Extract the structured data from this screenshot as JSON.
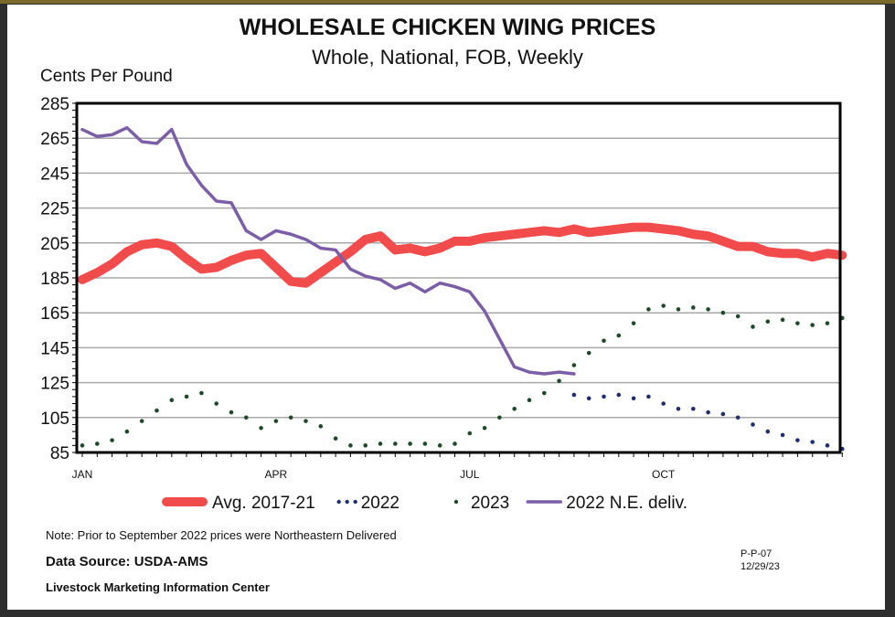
{
  "chart_data": {
    "type": "line",
    "title": "WHOLESALE CHICKEN WING PRICES",
    "subtitle": "Whole, National, FOB, Weekly",
    "ylabel": "Cents Per Pound",
    "ylim": [
      85,
      285
    ],
    "yticks": [
      85,
      105,
      125,
      145,
      165,
      185,
      205,
      225,
      245,
      265,
      285
    ],
    "xtick_labels": [
      {
        "label": "JAN",
        "week": 1
      },
      {
        "label": "APR",
        "week": 14
      },
      {
        "label": "JUL",
        "week": 27
      },
      {
        "label": "OCT",
        "week": 40
      }
    ],
    "x_unit": "week of year",
    "grid": true,
    "legend_placement": "bottom",
    "series": [
      {
        "name": "Avg. 2017-21",
        "style": "thick-line",
        "color": "#f24b4b",
        "start_week": 1,
        "values": [
          184,
          188,
          193,
          200,
          204,
          205,
          203,
          196,
          190,
          191,
          195,
          198,
          199,
          191,
          183,
          182,
          188,
          194,
          200,
          207,
          209,
          201,
          202,
          200,
          202,
          206,
          206,
          208,
          209,
          210,
          211,
          212,
          211,
          213,
          211,
          212,
          213,
          214,
          214,
          213,
          212,
          210,
          209,
          206,
          203,
          203,
          200,
          199,
          199,
          197,
          199,
          198
        ]
      },
      {
        "name": "2022",
        "style": "dots",
        "color": "#1f2f6e",
        "start_week": 34,
        "values": [
          118,
          116,
          117,
          118,
          116,
          117,
          113,
          110,
          110,
          108,
          107,
          105,
          101,
          97,
          95,
          92,
          91,
          89,
          87
        ]
      },
      {
        "name": "2023",
        "style": "dots",
        "color": "#1f4a2a",
        "start_week": 1,
        "values": [
          89,
          90,
          92,
          97,
          103,
          109,
          115,
          117,
          119,
          113,
          108,
          105,
          99,
          103,
          105,
          103,
          100,
          93,
          89,
          89,
          90,
          90,
          90,
          90,
          89,
          90,
          96,
          99,
          105,
          110,
          115,
          119,
          126,
          135,
          142,
          149,
          152,
          159,
          167,
          169,
          167,
          168,
          167,
          165,
          163,
          157,
          160,
          161,
          159,
          158,
          159,
          162
        ]
      },
      {
        "name": "2022 N.E. deliv.",
        "style": "line",
        "color": "#7b5ea7",
        "start_week": 1,
        "values": [
          270,
          266,
          267,
          271,
          263,
          262,
          270,
          250,
          238,
          229,
          228,
          212,
          207,
          212,
          210,
          207,
          202,
          201,
          190,
          186,
          184,
          179,
          182,
          177,
          182,
          180,
          177,
          166,
          150,
          134,
          131,
          130,
          131,
          130
        ]
      }
    ]
  },
  "footer": {
    "note": "Note: Prior to September 2022 prices were Northeastern Delivered",
    "source": "Data Source:  USDA-AMS",
    "org": "Livestock Marketing Information Center",
    "code": "P-P-07",
    "date": "12/29/23"
  }
}
